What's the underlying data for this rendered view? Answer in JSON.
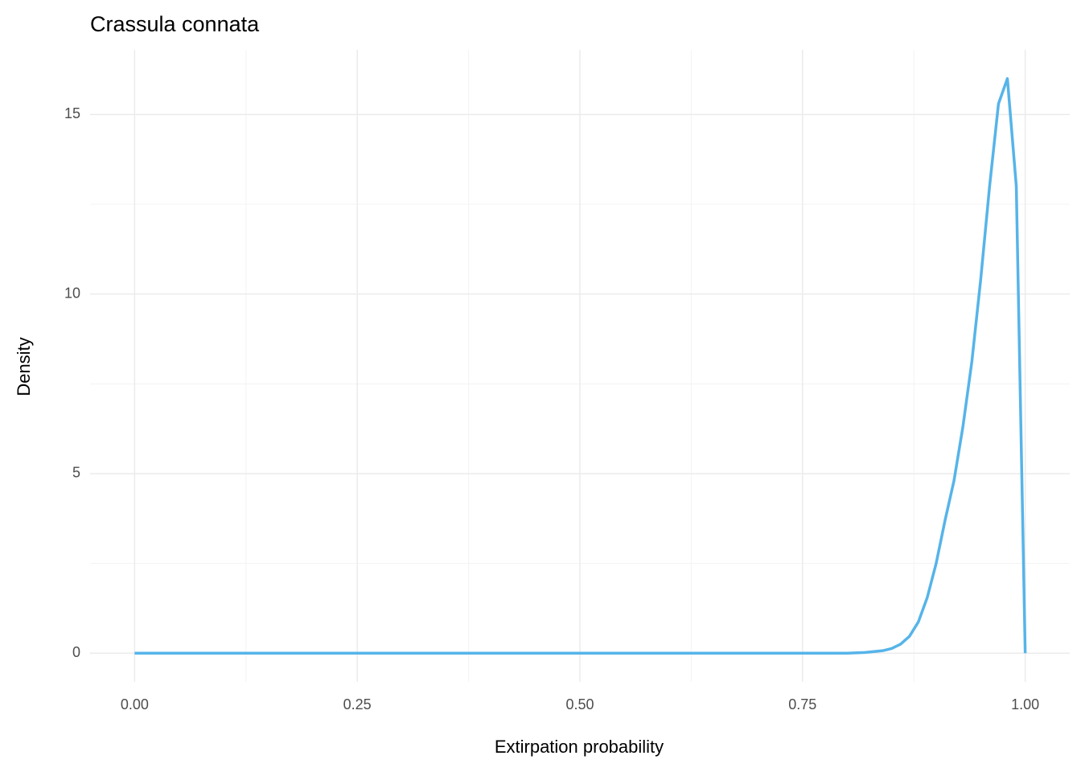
{
  "chart_data": {
    "type": "line",
    "title": "Crassula connata",
    "x_label": "Extirpation probability",
    "y_label": "Density",
    "x": [
      0,
      0.78,
      0.8,
      0.82,
      0.84,
      0.85,
      0.86,
      0.87,
      0.88,
      0.89,
      0.9,
      0.91,
      0.92,
      0.93,
      0.94,
      0.95,
      0.96,
      0.97,
      0.98,
      0.99,
      1.0
    ],
    "series": [
      {
        "name": "Crassula connata",
        "color": "#56B4E9",
        "values": [
          0,
          0,
          0,
          0.02,
          0.07,
          0.13,
          0.25,
          0.47,
          0.87,
          1.55,
          2.5,
          3.7,
          4.8,
          6.3,
          8.1,
          10.4,
          13.0,
          15.3,
          16.0,
          13.0,
          0
        ]
      }
    ],
    "xlim": [
      -0.05,
      1.05
    ],
    "ylim": [
      -0.8,
      16.8
    ],
    "xticks": [
      {
        "value": 0,
        "label": "0.00"
      },
      0.25,
      {
        "value": 0.5,
        "label": "0.50"
      },
      0.75,
      {
        "value": 1,
        "label": "1.00"
      }
    ],
    "yticks": [
      0,
      5,
      10,
      15
    ],
    "xminor": [
      0.125,
      0.375,
      0.625,
      0.875
    ],
    "yminor": [
      2.5,
      7.5,
      12.5
    ],
    "grid": true
  }
}
